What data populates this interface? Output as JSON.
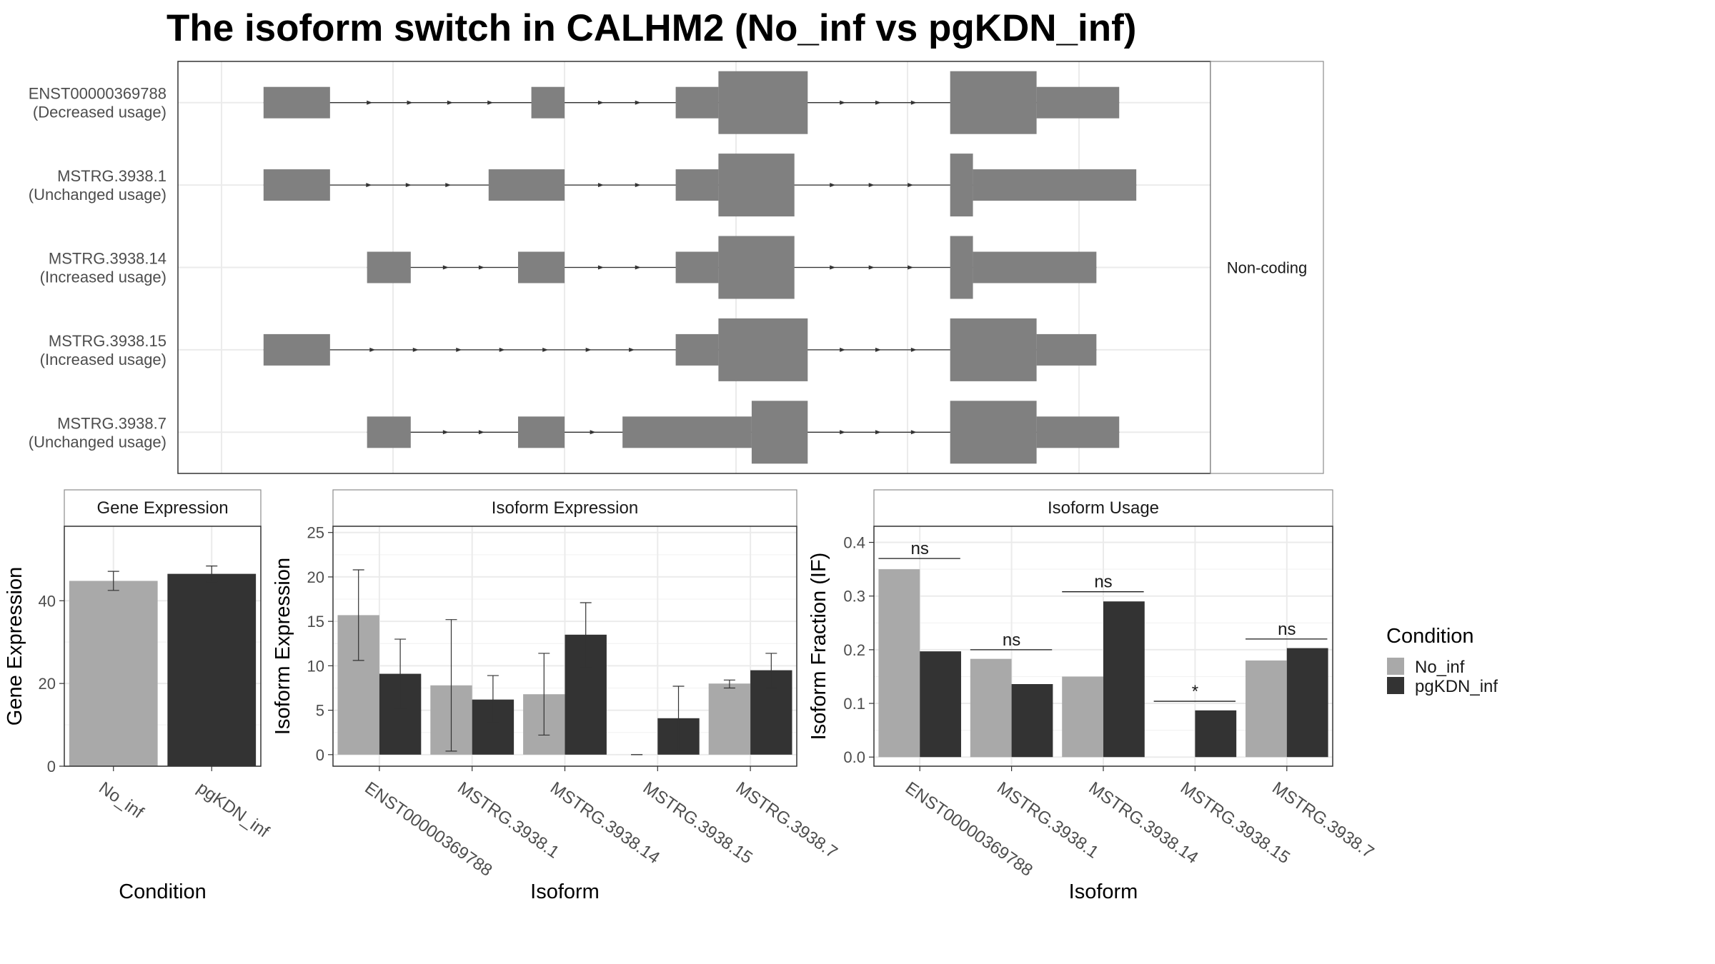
{
  "title": "The isoform switch in CALHM2 (No_inf vs pgKDN_inf)",
  "colors": {
    "no_inf": "#a9a9a9",
    "pgkdn_inf": "#333333",
    "exon": "#808080",
    "grid": "#ebebeb",
    "strip_fill": "#ffffff"
  },
  "chart_data": [
    {
      "type": "gene-structure",
      "facet_label": "Non-coding",
      "transcripts": [
        {
          "id": "ENST00000369788",
          "usage": "(Decreased usage)",
          "exons": [
            [
              0.045,
              0.115,
              "s"
            ],
            [
              0.327,
              0.362,
              "s"
            ],
            [
              0.479,
              0.524,
              "s"
            ],
            [
              0.524,
              0.618,
              "l"
            ],
            [
              0.768,
              0.859,
              "l"
            ],
            [
              0.859,
              0.946,
              "s"
            ]
          ]
        },
        {
          "id": "MSTRG.3938.1",
          "usage": "(Unchanged usage)",
          "exons": [
            [
              0.045,
              0.115,
              "s"
            ],
            [
              0.282,
              0.362,
              "s"
            ],
            [
              0.479,
              0.524,
              "s"
            ],
            [
              0.524,
              0.604,
              "l"
            ],
            [
              0.768,
              0.792,
              "l"
            ],
            [
              0.792,
              0.964,
              "s"
            ]
          ]
        },
        {
          "id": "MSTRG.3938.14",
          "usage": "(Increased usage)",
          "exons": [
            [
              0.154,
              0.2,
              "s"
            ],
            [
              0.313,
              0.362,
              "s"
            ],
            [
              0.479,
              0.524,
              "s"
            ],
            [
              0.524,
              0.604,
              "l"
            ],
            [
              0.768,
              0.792,
              "l"
            ],
            [
              0.792,
              0.922,
              "s"
            ]
          ]
        },
        {
          "id": "MSTRG.3938.15",
          "usage": "(Increased usage)",
          "exons": [
            [
              0.045,
              0.115,
              "s"
            ],
            [
              0.479,
              0.524,
              "s"
            ],
            [
              0.524,
              0.618,
              "l"
            ],
            [
              0.768,
              0.859,
              "l"
            ],
            [
              0.859,
              0.922,
              "s"
            ]
          ]
        },
        {
          "id": "MSTRG.3938.7",
          "usage": "(Unchanged usage)",
          "exons": [
            [
              0.154,
              0.2,
              "s"
            ],
            [
              0.313,
              0.362,
              "s"
            ],
            [
              0.423,
              0.559,
              "s"
            ],
            [
              0.559,
              0.618,
              "l"
            ],
            [
              0.768,
              0.859,
              "l"
            ],
            [
              0.859,
              0.946,
              "s"
            ]
          ]
        }
      ]
    },
    {
      "type": "bar",
      "panel_title": "Gene Expression",
      "xlabel": "Condition",
      "ylabel": "Gene Expression",
      "categories": [
        "No_inf",
        "pgKDN_inf"
      ],
      "values": [
        44.8,
        46.5
      ],
      "errors": [
        [
          42.5,
          47.1
        ],
        [
          44.6,
          48.4
        ]
      ],
      "ylim": [
        0,
        58
      ],
      "yticks": [
        0,
        20,
        40
      ]
    },
    {
      "type": "bar",
      "panel_title": "Isoform Expression",
      "xlabel": "Isoform",
      "ylabel": "Isoform Expression",
      "categories": [
        "ENST00000369788",
        "MSTRG.3938.1",
        "MSTRG.3938.14",
        "MSTRG.3938.15",
        "MSTRG.3938.7"
      ],
      "series": [
        {
          "name": "No_inf",
          "values": [
            15.7,
            7.8,
            6.8,
            0.0,
            8.0
          ],
          "errors": [
            [
              10.6,
              20.8
            ],
            [
              0.4,
              15.2
            ],
            [
              2.2,
              11.4
            ],
            [
              0.0,
              0.0
            ],
            [
              7.5,
              8.4
            ]
          ]
        },
        {
          "name": "pgKDN_inf",
          "values": [
            9.1,
            6.2,
            13.5,
            4.1,
            9.5
          ],
          "errors": [
            [
              5.2,
              13.0
            ],
            [
              3.6,
              8.9
            ],
            [
              9.8,
              17.1
            ],
            [
              0.4,
              7.7
            ],
            [
              7.5,
              11.4
            ]
          ]
        }
      ],
      "ylim": [
        -1.3,
        25.7
      ],
      "yticks": [
        0,
        5,
        10,
        15,
        20,
        25
      ]
    },
    {
      "type": "bar",
      "panel_title": "Isoform Usage",
      "xlabel": "Isoform",
      "ylabel": "Isoform Fraction (IF)",
      "categories": [
        "ENST00000369788",
        "MSTRG.3938.1",
        "MSTRG.3938.14",
        "MSTRG.3938.15",
        "MSTRG.3938.7"
      ],
      "series": [
        {
          "name": "No_inf",
          "values": [
            0.35,
            0.183,
            0.15,
            0.0,
            0.18
          ]
        },
        {
          "name": "pgKDN_inf",
          "values": [
            0.197,
            0.136,
            0.29,
            0.087,
            0.203
          ]
        }
      ],
      "significance": [
        {
          "label": "ns",
          "y": 0.37
        },
        {
          "label": "ns",
          "y": 0.2
        },
        {
          "label": "ns",
          "y": 0.308
        },
        {
          "label": "*",
          "y": 0.104
        },
        {
          "label": "ns",
          "y": 0.22
        }
      ],
      "ylim": [
        -0.017,
        0.43
      ],
      "yticks": [
        0.0,
        0.1,
        0.2,
        0.3,
        0.4
      ],
      "ytick_labels": [
        "0.0",
        "0.1",
        "0.2",
        "0.3",
        "0.4"
      ]
    }
  ],
  "legend": {
    "title": "Condition",
    "items": [
      "No_inf",
      "pgKDN_inf"
    ]
  }
}
